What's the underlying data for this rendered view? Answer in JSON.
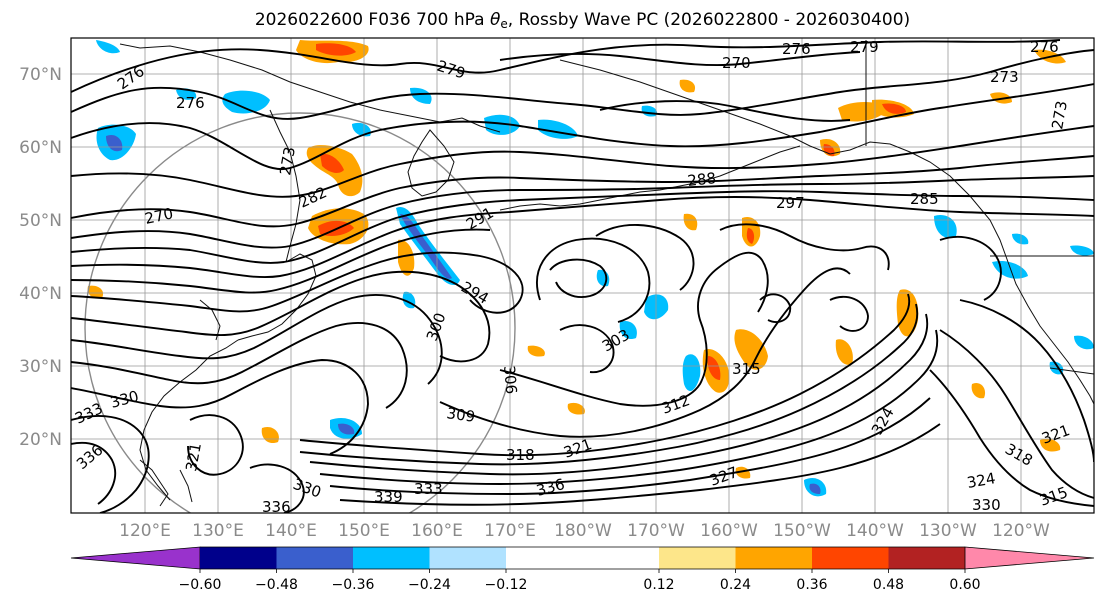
{
  "chart_data": {
    "type": "map-contour",
    "title_prefix": "2026022600 F036 700 hPa ",
    "title_symbol": "θ",
    "title_subscript": "e",
    "title_suffix": ", Rossby Wave PC (2026022800 - 2026030400)",
    "lat_ticks": [
      "70°N",
      "60°N",
      "50°N",
      "40°N",
      "30°N",
      "20°N"
    ],
    "lon_ticks": [
      "120°E",
      "130°E",
      "140°E",
      "150°E",
      "160°E",
      "170°E",
      "180°W",
      "170°W",
      "160°W",
      "150°W",
      "140°W",
      "130°W",
      "120°W"
    ],
    "colorbar": {
      "bounds": [
        -0.72,
        -0.6,
        -0.48,
        -0.36,
        -0.24,
        -0.12,
        0.12,
        0.24,
        0.36,
        0.48,
        0.6,
        0.72
      ],
      "tick_labels": [
        "−0.60",
        "−0.48",
        "−0.36",
        "−0.24",
        "−0.12",
        "0.12",
        "0.24",
        "0.36",
        "0.48",
        "0.60"
      ],
      "colors": [
        "#9932cc",
        "#00008b",
        "#3a5fcd",
        "#00bfff",
        "#b0e2ff",
        "#ffffff",
        "#fde68a",
        "#ffa500",
        "#ff4500",
        "#b22222",
        "#ff88aa"
      ],
      "extend": "both"
    },
    "contour_labels": [
      "276",
      "279",
      "270",
      "276",
      "273",
      "276",
      "273",
      "276",
      "279",
      "270",
      "282",
      "273",
      "288",
      "291",
      "297",
      "285",
      "294",
      "300",
      "303",
      "306",
      "309",
      "312",
      "315",
      "318",
      "321",
      "324",
      "327",
      "330",
      "333",
      "336",
      "339",
      "321",
      "318",
      "330",
      "333",
      "336",
      "336",
      "321",
      "324",
      "330",
      "315"
    ]
  }
}
